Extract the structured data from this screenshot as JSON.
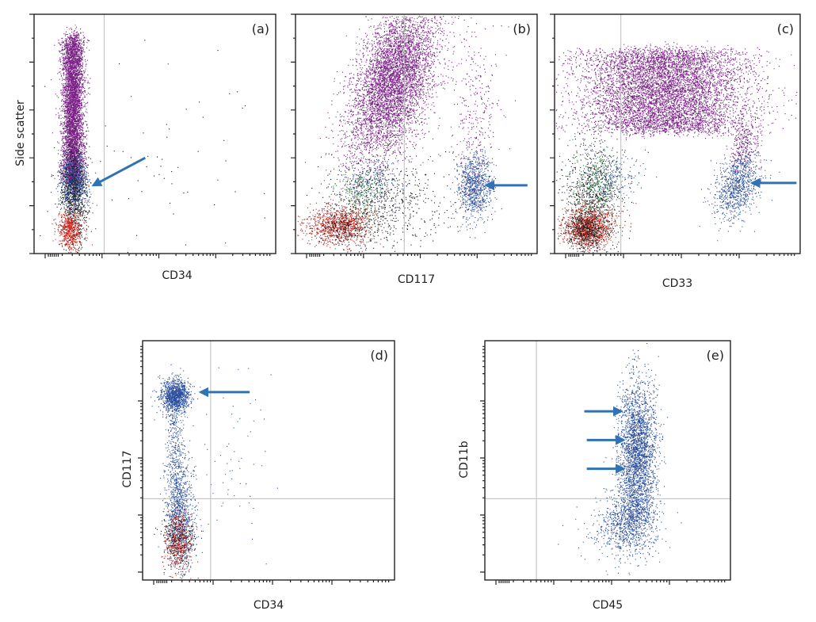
{
  "colors": {
    "granulocytes": "#7a1f86",
    "blasts": "#2b4f9e",
    "lymphocytes": "#d9261c",
    "debris": "#1a1a1a",
    "monocytes": "#2e8b3a",
    "gate_line": "#bdbdbd",
    "arrow": "#2f73b5"
  },
  "chart_data": [
    {
      "id": "a",
      "type": "scatter",
      "panel_label": "(a)",
      "xlabel": "CD34",
      "ylabel": "Side scatter",
      "xscale": "log",
      "yscale": "linear",
      "xlim": [
        0,
        1
      ],
      "ylim": [
        0,
        1
      ],
      "gate": {
        "x": 0.29
      },
      "populations": [
        {
          "color_key": "granulocytes",
          "n": 5200,
          "cx": 0.16,
          "cy": 0.6,
          "sx": 0.022,
          "sy": 0.3,
          "shape": "box"
        },
        {
          "color_key": "blasts",
          "n": 900,
          "cx": 0.165,
          "cy": 0.3,
          "sx": 0.028,
          "sy": 0.055
        },
        {
          "color_key": "debris",
          "n": 900,
          "cx": 0.16,
          "cy": 0.22,
          "sx": 0.03,
          "sy": 0.12
        },
        {
          "color_key": "lymphocytes",
          "n": 500,
          "cx": 0.145,
          "cy": 0.1,
          "sx": 0.025,
          "sy": 0.04
        },
        {
          "color_key": "debris",
          "n": 70,
          "cx": 0.5,
          "cy": 0.4,
          "sx": 0.25,
          "sy": 0.25
        }
      ],
      "arrows": [
        {
          "x1": 0.46,
          "y1": 0.4,
          "x2": 0.245,
          "y2": 0.285
        }
      ]
    },
    {
      "id": "b",
      "type": "scatter",
      "panel_label": "(b)",
      "xlabel": "CD117",
      "ylabel": "",
      "xscale": "log",
      "yscale": "linear",
      "xlim": [
        0,
        1
      ],
      "ylim": [
        0,
        1
      ],
      "gate": {
        "x": 0.45
      },
      "populations": [
        {
          "color_key": "granulocytes",
          "n": 5500,
          "cx": 0.4,
          "cy": 0.72,
          "sx": 0.08,
          "sy": 0.16,
          "tilt": 0.9
        },
        {
          "color_key": "granulocytes",
          "n": 350,
          "cx": 0.74,
          "cy": 0.58,
          "sx": 0.05,
          "sy": 0.22
        },
        {
          "color_key": "blasts",
          "n": 900,
          "cx": 0.74,
          "cy": 0.28,
          "sx": 0.035,
          "sy": 0.07
        },
        {
          "color_key": "blasts",
          "n": 250,
          "cx": 0.32,
          "cy": 0.3,
          "sx": 0.06,
          "sy": 0.05
        },
        {
          "color_key": "debris",
          "n": 700,
          "cx": 0.36,
          "cy": 0.22,
          "sx": 0.12,
          "sy": 0.1
        },
        {
          "color_key": "monocytes",
          "n": 200,
          "cx": 0.26,
          "cy": 0.24,
          "sx": 0.05,
          "sy": 0.05
        },
        {
          "color_key": "lymphocytes",
          "n": 900,
          "cx": 0.18,
          "cy": 0.12,
          "sx": 0.07,
          "sy": 0.04
        },
        {
          "color_key": "debris",
          "n": 300,
          "cx": 0.2,
          "cy": 0.11,
          "sx": 0.06,
          "sy": 0.04
        }
      ],
      "arrows": [
        {
          "x1": 0.96,
          "y1": 0.285,
          "x2": 0.79,
          "y2": 0.285
        }
      ]
    },
    {
      "id": "c",
      "type": "scatter",
      "panel_label": "(c)",
      "xlabel": "CD33",
      "ylabel": "",
      "xscale": "log",
      "yscale": "linear",
      "xlim": [
        0,
        1
      ],
      "ylim": [
        0,
        1
      ],
      "gate": {
        "x": 0.27
      },
      "populations": [
        {
          "color_key": "granulocytes",
          "n": 7000,
          "cx": 0.45,
          "cy": 0.68,
          "sx": 0.17,
          "sy": 0.17,
          "shape": "box"
        },
        {
          "color_key": "granulocytes",
          "n": 300,
          "cx": 0.77,
          "cy": 0.45,
          "sx": 0.03,
          "sy": 0.06
        },
        {
          "color_key": "blasts",
          "n": 900,
          "cx": 0.74,
          "cy": 0.28,
          "sx": 0.045,
          "sy": 0.07,
          "tilt": 0.6
        },
        {
          "color_key": "blasts",
          "n": 300,
          "cx": 0.22,
          "cy": 0.32,
          "sx": 0.06,
          "sy": 0.06
        },
        {
          "color_key": "debris",
          "n": 900,
          "cx": 0.15,
          "cy": 0.22,
          "sx": 0.06,
          "sy": 0.12
        },
        {
          "color_key": "monocytes",
          "n": 250,
          "cx": 0.17,
          "cy": 0.28,
          "sx": 0.05,
          "sy": 0.08
        },
        {
          "color_key": "lymphocytes",
          "n": 1000,
          "cx": 0.13,
          "cy": 0.11,
          "sx": 0.05,
          "sy": 0.04
        },
        {
          "color_key": "debris",
          "n": 500,
          "cx": 0.13,
          "cy": 0.1,
          "sx": 0.04,
          "sy": 0.04
        }
      ],
      "arrows": [
        {
          "x1": 0.985,
          "y1": 0.295,
          "x2": 0.805,
          "y2": 0.295
        }
      ]
    },
    {
      "id": "d",
      "type": "scatter",
      "panel_label": "(d)",
      "xlabel": "CD34",
      "ylabel": "CD117",
      "xscale": "log",
      "yscale": "log",
      "xlim": [
        0,
        1
      ],
      "ylim": [
        0,
        1
      ],
      "gate": {
        "x": 0.27,
        "y": 0.34
      },
      "populations": [
        {
          "color_key": "blasts",
          "n": 1200,
          "cx": 0.13,
          "cy": 0.77,
          "sx": 0.028,
          "sy": 0.035
        },
        {
          "color_key": "blasts",
          "n": 450,
          "cx": 0.13,
          "cy": 0.5,
          "sx": 0.02,
          "sy": 0.12
        },
        {
          "color_key": "blasts",
          "n": 900,
          "cx": 0.15,
          "cy": 0.25,
          "sx": 0.03,
          "sy": 0.1
        },
        {
          "color_key": "lymphocytes",
          "n": 450,
          "cx": 0.14,
          "cy": 0.16,
          "sx": 0.025,
          "sy": 0.06
        },
        {
          "color_key": "debris",
          "n": 300,
          "cx": 0.14,
          "cy": 0.17,
          "sx": 0.03,
          "sy": 0.06
        },
        {
          "color_key": "blasts",
          "n": 60,
          "cx": 0.36,
          "cy": 0.55,
          "sx": 0.08,
          "sy": 0.18
        }
      ],
      "arrows": [
        {
          "x1": 0.425,
          "y1": 0.785,
          "x2": 0.23,
          "y2": 0.785
        }
      ]
    },
    {
      "id": "e",
      "type": "scatter",
      "panel_label": "(e)",
      "xlabel": "CD45",
      "ylabel": "CD11b",
      "xscale": "log",
      "yscale": "log",
      "xlim": [
        0,
        1
      ],
      "ylim": [
        0,
        1
      ],
      "gate": {
        "x": 0.21,
        "y": 0.34
      },
      "populations": [
        {
          "color_key": "blasts",
          "n": 2600,
          "cx": 0.62,
          "cy": 0.54,
          "sx": 0.038,
          "sy": 0.15
        },
        {
          "color_key": "blasts",
          "n": 800,
          "cx": 0.59,
          "cy": 0.27,
          "sx": 0.05,
          "sy": 0.07
        },
        {
          "color_key": "blasts",
          "n": 300,
          "cx": 0.56,
          "cy": 0.2,
          "sx": 0.08,
          "sy": 0.06
        }
      ],
      "arrows": [
        {
          "x1": 0.405,
          "y1": 0.705,
          "x2": 0.555,
          "y2": 0.705
        },
        {
          "x1": 0.415,
          "y1": 0.585,
          "x2": 0.565,
          "y2": 0.585
        },
        {
          "x1": 0.415,
          "y1": 0.465,
          "x2": 0.565,
          "y2": 0.465
        }
      ]
    }
  ]
}
